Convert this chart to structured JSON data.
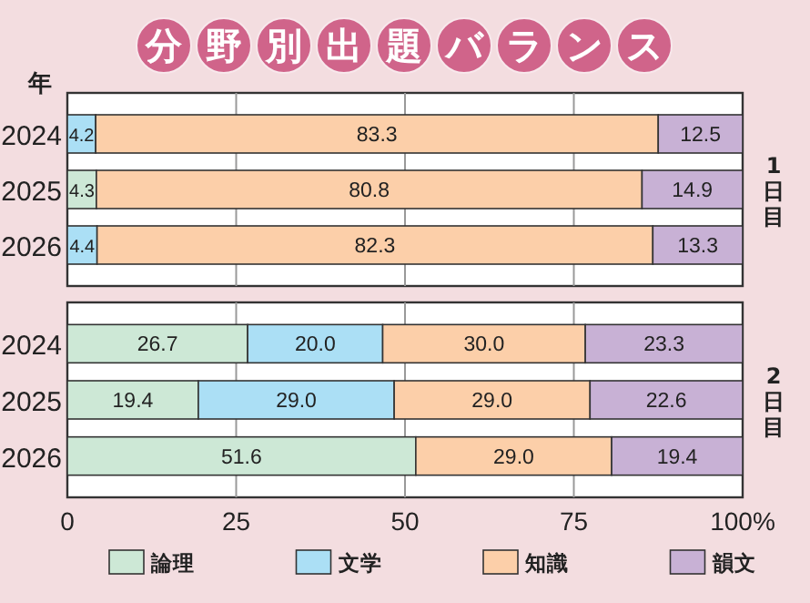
{
  "chart_data": [
    {
      "type": "bar",
      "orientation": "horizontal",
      "stacked": true,
      "title": "分野別出題バランス",
      "ylabel": "年",
      "y2label": "1日目",
      "categories": [
        "2024",
        "2025",
        "2026"
      ],
      "xlim": [
        0,
        100
      ],
      "xticks": [
        0,
        25,
        50,
        75,
        100
      ],
      "tick_labels": "y",
      "grid": "x",
      "legend": false,
      "series": [
        {
          "color": "#cde8d6",
          "values": [
            null,
            4.3,
            null
          ],
          "value_labels": [
            null,
            "4.3",
            null
          ]
        },
        {
          "color": "#abdff5",
          "values": [
            4.2,
            null,
            4.4
          ],
          "value_labels": [
            "4.2",
            null,
            "4.4"
          ]
        },
        {
          "color": "#fccfa9",
          "values": [
            83.3,
            80.8,
            82.3
          ],
          "value_labels": [
            "83.3",
            "80.8",
            "82.3"
          ]
        },
        {
          "color": "#c8b1d5",
          "values": [
            12.5,
            14.9,
            13.3
          ],
          "value_labels": [
            "12.5",
            "14.9",
            "13.3"
          ]
        }
      ]
    },
    {
      "type": "bar",
      "orientation": "horizontal",
      "stacked": true,
      "y2label": "2日目",
      "categories": [
        "2024",
        "2025",
        "2026"
      ],
      "xlim": [
        0,
        100
      ],
      "xticks": [
        0,
        25,
        50,
        75,
        {
          "value": 100,
          "label": "100%"
        }
      ],
      "grid": "x",
      "legend": "bottom",
      "series": [
        {
          "name": "論理",
          "color": "#cde8d6",
          "values": [
            26.7,
            19.4,
            51.6
          ],
          "value_labels": [
            "26.7",
            "19.4",
            "51.6"
          ]
        },
        {
          "name": "文学",
          "color": "#abdff5",
          "values": [
            20.0,
            29.0,
            null
          ],
          "value_labels": [
            "20.0",
            "29.0",
            null
          ]
        },
        {
          "name": "知識",
          "color": "#fccfa9",
          "values": [
            30.0,
            29.0,
            29.0
          ],
          "value_labels": [
            "30.0",
            "29.0",
            "29.0"
          ]
        },
        {
          "name": "韻文",
          "color": "#c8b1d5",
          "values": [
            23.3,
            22.6,
            19.4
          ],
          "value_labels": [
            "23.3",
            "22.6",
            "19.4"
          ]
        }
      ]
    }
  ]
}
